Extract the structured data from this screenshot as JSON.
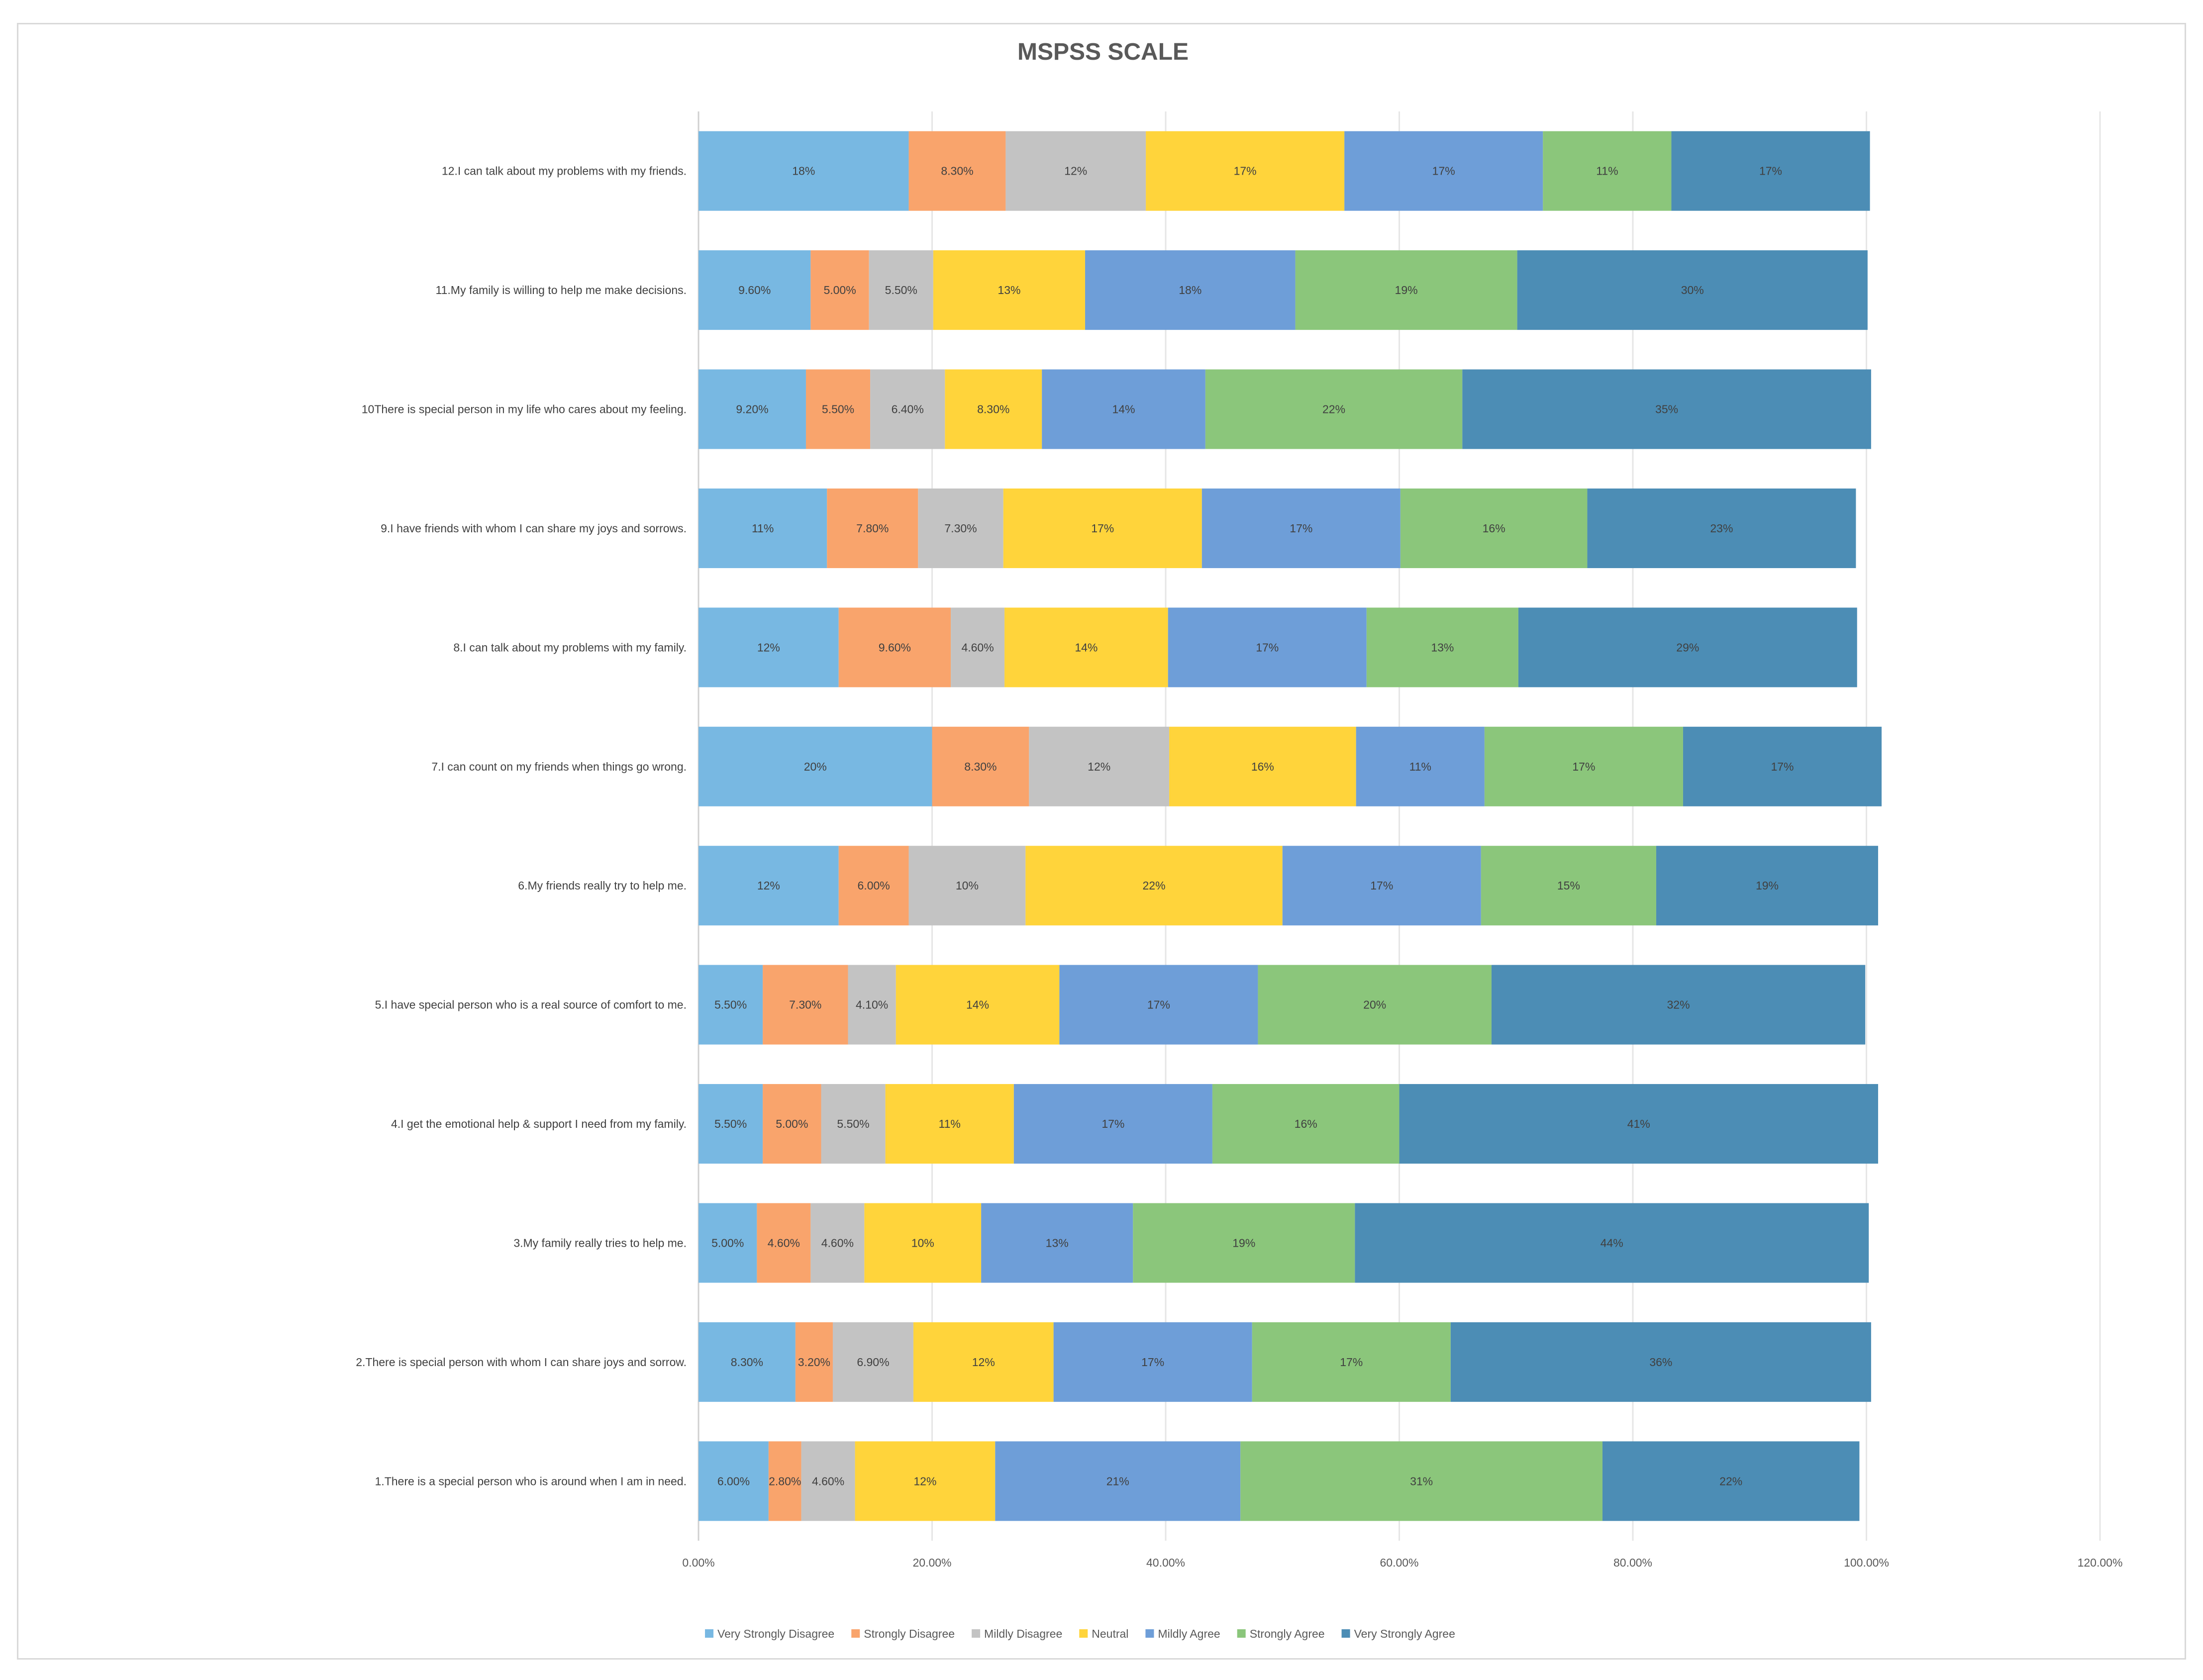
{
  "chart_data": {
    "type": "bar",
    "orientation": "horizontal",
    "stacked": true,
    "title": "MSPSS SCALE",
    "xlabel": "",
    "ylabel": "",
    "xlim": [
      0,
      120
    ],
    "x_ticks": [
      "0.00%",
      "20.00%",
      "40.00%",
      "60.00%",
      "80.00%",
      "100.00%",
      "120.00%"
    ],
    "x_tick_values": [
      0,
      20,
      40,
      60,
      80,
      100,
      120
    ],
    "grid": true,
    "legend_position": "bottom",
    "categories": [
      "1.There is a special person who is around when I am in need.",
      "2.There is special person with whom I can share joys and sorrow.",
      "3.My family really tries to help me.",
      "4.I get the emotional help & support I need from my family.",
      "5.I have special person who is a real source of comfort to me.",
      "6.My friends really try to help me.",
      "7.I can count on my friends when things go wrong.",
      "8.I can talk about my problems with my family.",
      "9.I have friends with whom I can share my joys and sorrows.",
      "10There is special person in my life who cares about my feeling.",
      "11.My family is willing to help me make decisions.",
      "12.I can talk about my problems with my friends."
    ],
    "series": [
      {
        "name": "Very Strongly Disagree",
        "color": "#78B8E2",
        "values": [
          6.0,
          8.3,
          5.0,
          5.5,
          5.5,
          12,
          20,
          12,
          11,
          9.2,
          9.6,
          18
        ],
        "labels": [
          "6.00%",
          "8.30%",
          "5.00%",
          "5.50%",
          "5.50%",
          "12%",
          "20%",
          "12%",
          "11%",
          "9.20%",
          "9.60%",
          "18%"
        ]
      },
      {
        "name": "Strongly Disagree",
        "color": "#F9A46C",
        "values": [
          2.8,
          3.2,
          4.6,
          5.0,
          7.3,
          6.0,
          8.3,
          9.6,
          7.8,
          5.5,
          5.0,
          8.3
        ],
        "labels": [
          "2.80%",
          "3.20%",
          "4.60%",
          "5.00%",
          "7.30%",
          "6.00%",
          "8.30%",
          "9.60%",
          "7.80%",
          "5.50%",
          "5.00%",
          "8.30%"
        ]
      },
      {
        "name": "Mildly Disagree",
        "color": "#C3C3C3",
        "values": [
          4.6,
          6.9,
          4.6,
          5.5,
          4.1,
          10,
          12,
          4.6,
          7.3,
          6.4,
          5.5,
          12
        ],
        "labels": [
          "4.60%",
          "6.90%",
          "4.60%",
          "5.50%",
          "4.10%",
          "10%",
          "12%",
          "4.60%",
          "7.30%",
          "6.40%",
          "5.50%",
          "12%"
        ]
      },
      {
        "name": "Neutral",
        "color": "#FFD43B",
        "values": [
          12,
          12,
          10,
          11,
          14,
          22,
          16,
          14,
          17,
          8.3,
          13,
          17
        ],
        "labels": [
          "12%",
          "12%",
          "10%",
          "11%",
          "14%",
          "22%",
          "16%",
          "14%",
          "17%",
          "8.30%",
          "13%",
          "17%"
        ]
      },
      {
        "name": "Mildly Agree",
        "color": "#6E9ED8",
        "values": [
          21,
          17,
          13,
          17,
          17,
          17,
          11,
          17,
          17,
          14,
          18,
          17
        ],
        "labels": [
          "21%",
          "17%",
          "13%",
          "17%",
          "17%",
          "17%",
          "11%",
          "17%",
          "17%",
          "14%",
          "18%",
          "17%"
        ]
      },
      {
        "name": "Strongly Agree",
        "color": "#8BC67B",
        "values": [
          31,
          17,
          19,
          16,
          20,
          15,
          17,
          13,
          16,
          22,
          19,
          11
        ],
        "labels": [
          "31%",
          "17%",
          "19%",
          "16%",
          "20%",
          "15%",
          "17%",
          "13%",
          "16%",
          "22%",
          "19%",
          "11%"
        ]
      },
      {
        "name": "Very Strongly Agree",
        "color": "#4C8DB5",
        "values": [
          22,
          36,
          44,
          41,
          32,
          19,
          17,
          29,
          23,
          35,
          30,
          17
        ],
        "labels": [
          "22%",
          "36%",
          "44%",
          "41%",
          "32%",
          "19%",
          "17%",
          "29%",
          "23%",
          "35%",
          "30%",
          "17%"
        ]
      }
    ]
  }
}
